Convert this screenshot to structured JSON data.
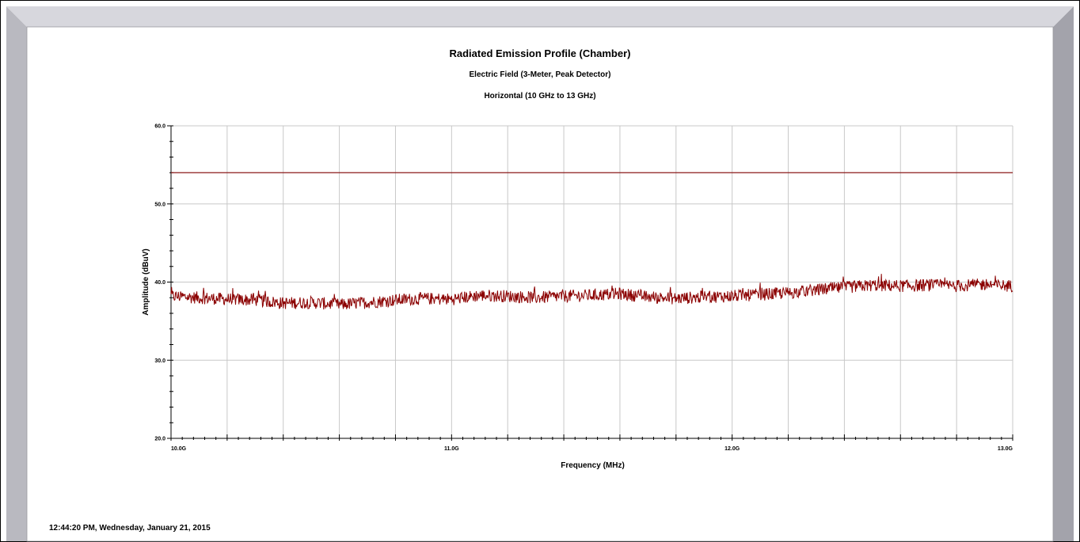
{
  "chart_data": {
    "type": "line",
    "title": "Radiated Emission Profile (Chamber)",
    "subtitle": "Electric Field (3-Meter, Peak Detector)",
    "subtitle2": "Horizontal (10 GHz to 13 GHz)",
    "xlabel": "Frequency (MHz)",
    "ylabel": "Amplitude (dBuV)",
    "xlim": [
      10000,
      13000
    ],
    "ylim": [
      20,
      60
    ],
    "x_ticks": [
      10000,
      11000,
      12000,
      13000
    ],
    "x_tick_labels": [
      "10.0G",
      "11.0G",
      "12.0G",
      "13.0G"
    ],
    "y_ticks": [
      20,
      30,
      40,
      50,
      60
    ],
    "y_tick_labels": [
      "20.0",
      "30.0",
      "40.0",
      "50.0",
      "60.0"
    ],
    "grid": true,
    "legend": "none",
    "limit_line": {
      "value": 54.0,
      "color": "#8b1a1a"
    },
    "series": [
      {
        "color": "#8b0000",
        "x": [
          10000,
          10100,
          10200,
          10300,
          10400,
          10500,
          10600,
          10700,
          10800,
          10900,
          11000,
          11100,
          11200,
          11300,
          11400,
          11500,
          11600,
          11700,
          11800,
          11900,
          12000,
          12100,
          12200,
          12300,
          12400,
          12500,
          12600,
          12700,
          12800,
          12900,
          13000
        ],
        "values": [
          38.2,
          38.0,
          37.8,
          37.7,
          37.3,
          37.4,
          37.1,
          37.4,
          37.7,
          37.9,
          37.8,
          38.3,
          38.2,
          38.0,
          38.2,
          38.3,
          38.5,
          38.1,
          37.9,
          38.1,
          38.2,
          38.4,
          38.6,
          39.0,
          39.3,
          39.6,
          39.5,
          39.6,
          39.5,
          39.7,
          39.5
        ]
      }
    ]
  },
  "colors": {
    "frame_outer": "#9a9aa0",
    "frame_inner": "#cfcfd6",
    "grid": "#c8c8c8",
    "trace": "#8b0000",
    "limit": "#8b1a1a"
  },
  "footer": {
    "timestamp": "12:44:20 PM, Wednesday, January 21, 2015"
  }
}
